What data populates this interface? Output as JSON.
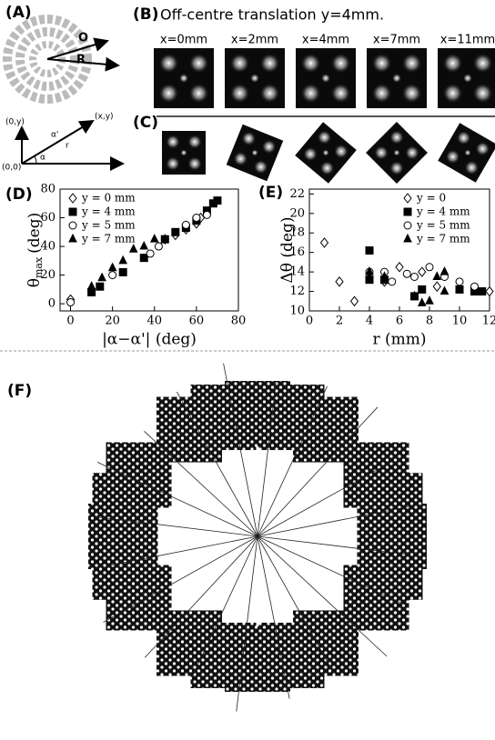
{
  "panel_a": {
    "label": "(A)",
    "o": "O",
    "r_big": "R",
    "origin_y": "(0,y)",
    "point": "(x,y)",
    "origin": "(0,0)",
    "alpha_prime": "α'",
    "r": "r",
    "alpha": "α"
  },
  "panel_b": {
    "label": "(B)",
    "title": "Off-centre translation y=4mm.",
    "images": [
      "x=0mm",
      "x=2mm",
      "x=4mm",
      "x=7mm",
      "x=11mm"
    ]
  },
  "panel_c": {
    "label": "(C)"
  },
  "panel_f": {
    "label": "(F)"
  },
  "chart_data": [
    {
      "type": "scatter",
      "label": "(D)",
      "ylabel": "θ",
      "ylabel_sub": "max",
      "ylabel_unit": "(deg)",
      "xlabel": "|α−α'| (deg)",
      "xlim": [
        -5,
        80
      ],
      "xticks": [
        0,
        20,
        40,
        60,
        80
      ],
      "ylim": [
        -5,
        80
      ],
      "yticks": [
        0,
        20,
        40,
        60,
        80
      ],
      "legend": "top-left",
      "series": [
        {
          "name": "y = 0 mm",
          "marker": "diamond-open",
          "color": "#000000",
          "x": [
            0,
            45,
            50,
            55,
            60,
            62
          ],
          "y": [
            3,
            45,
            48,
            52,
            56,
            60
          ]
        },
        {
          "name": "y = 4 mm",
          "marker": "square",
          "color": "#000000",
          "x": [
            10,
            14,
            25,
            35,
            45,
            50,
            55,
            60,
            65,
            68,
            70
          ],
          "y": [
            8,
            12,
            22,
            32,
            45,
            50,
            53,
            58,
            65,
            70,
            72
          ]
        },
        {
          "name": "y = 5 mm",
          "marker": "circle-open",
          "color": "#000000",
          "x": [
            0,
            20,
            38,
            42,
            55,
            60,
            65
          ],
          "y": [
            1,
            20,
            35,
            40,
            55,
            60,
            62
          ]
        },
        {
          "name": "y = 7 mm",
          "marker": "triangle",
          "color": "#000000",
          "x": [
            10,
            15,
            20,
            25,
            30,
            35,
            40
          ],
          "y": [
            12,
            18,
            25,
            30,
            38,
            40,
            45
          ]
        }
      ]
    },
    {
      "type": "scatter",
      "label": "(E)",
      "ylabel": "Δθ (deg)",
      "xlabel": "r (mm)",
      "xlim": [
        0,
        12
      ],
      "xticks": [
        0,
        2,
        4,
        6,
        8,
        10,
        12
      ],
      "ylim": [
        10,
        22.5
      ],
      "yticks": [
        10,
        12,
        14,
        16,
        18,
        20,
        22
      ],
      "legend": "top-right",
      "series": [
        {
          "name": "y = 0",
          "marker": "diamond-open",
          "color": "#000000",
          "x": [
            1,
            2,
            3,
            5,
            6,
            7.5,
            8.5,
            11,
            12
          ],
          "y": [
            17,
            13,
            11,
            13,
            14.5,
            14,
            12.5,
            12.2,
            12
          ]
        },
        {
          "name": "y = 4 mm",
          "marker": "square",
          "color": "#000000",
          "x": [
            4,
            4,
            5,
            7,
            7.5,
            10,
            11,
            11.5
          ],
          "y": [
            16.2,
            13.2,
            13.2,
            11.5,
            12.2,
            12.2,
            12,
            12
          ]
        },
        {
          "name": "y = 5 mm",
          "marker": "circle-open",
          "color": "#000000",
          "x": [
            4,
            5,
            5.5,
            6.5,
            7,
            8,
            9,
            10,
            11
          ],
          "y": [
            14,
            14,
            13,
            13.8,
            13.5,
            14.5,
            13.5,
            13,
            12.5
          ]
        },
        {
          "name": "y = 7 mm",
          "marker": "triangle",
          "color": "#000000",
          "x": [
            4,
            5,
            7,
            7.5,
            8,
            8.5,
            9,
            9
          ],
          "y": [
            14,
            13.5,
            11.5,
            10.8,
            11,
            13.5,
            14,
            12
          ]
        }
      ]
    }
  ]
}
